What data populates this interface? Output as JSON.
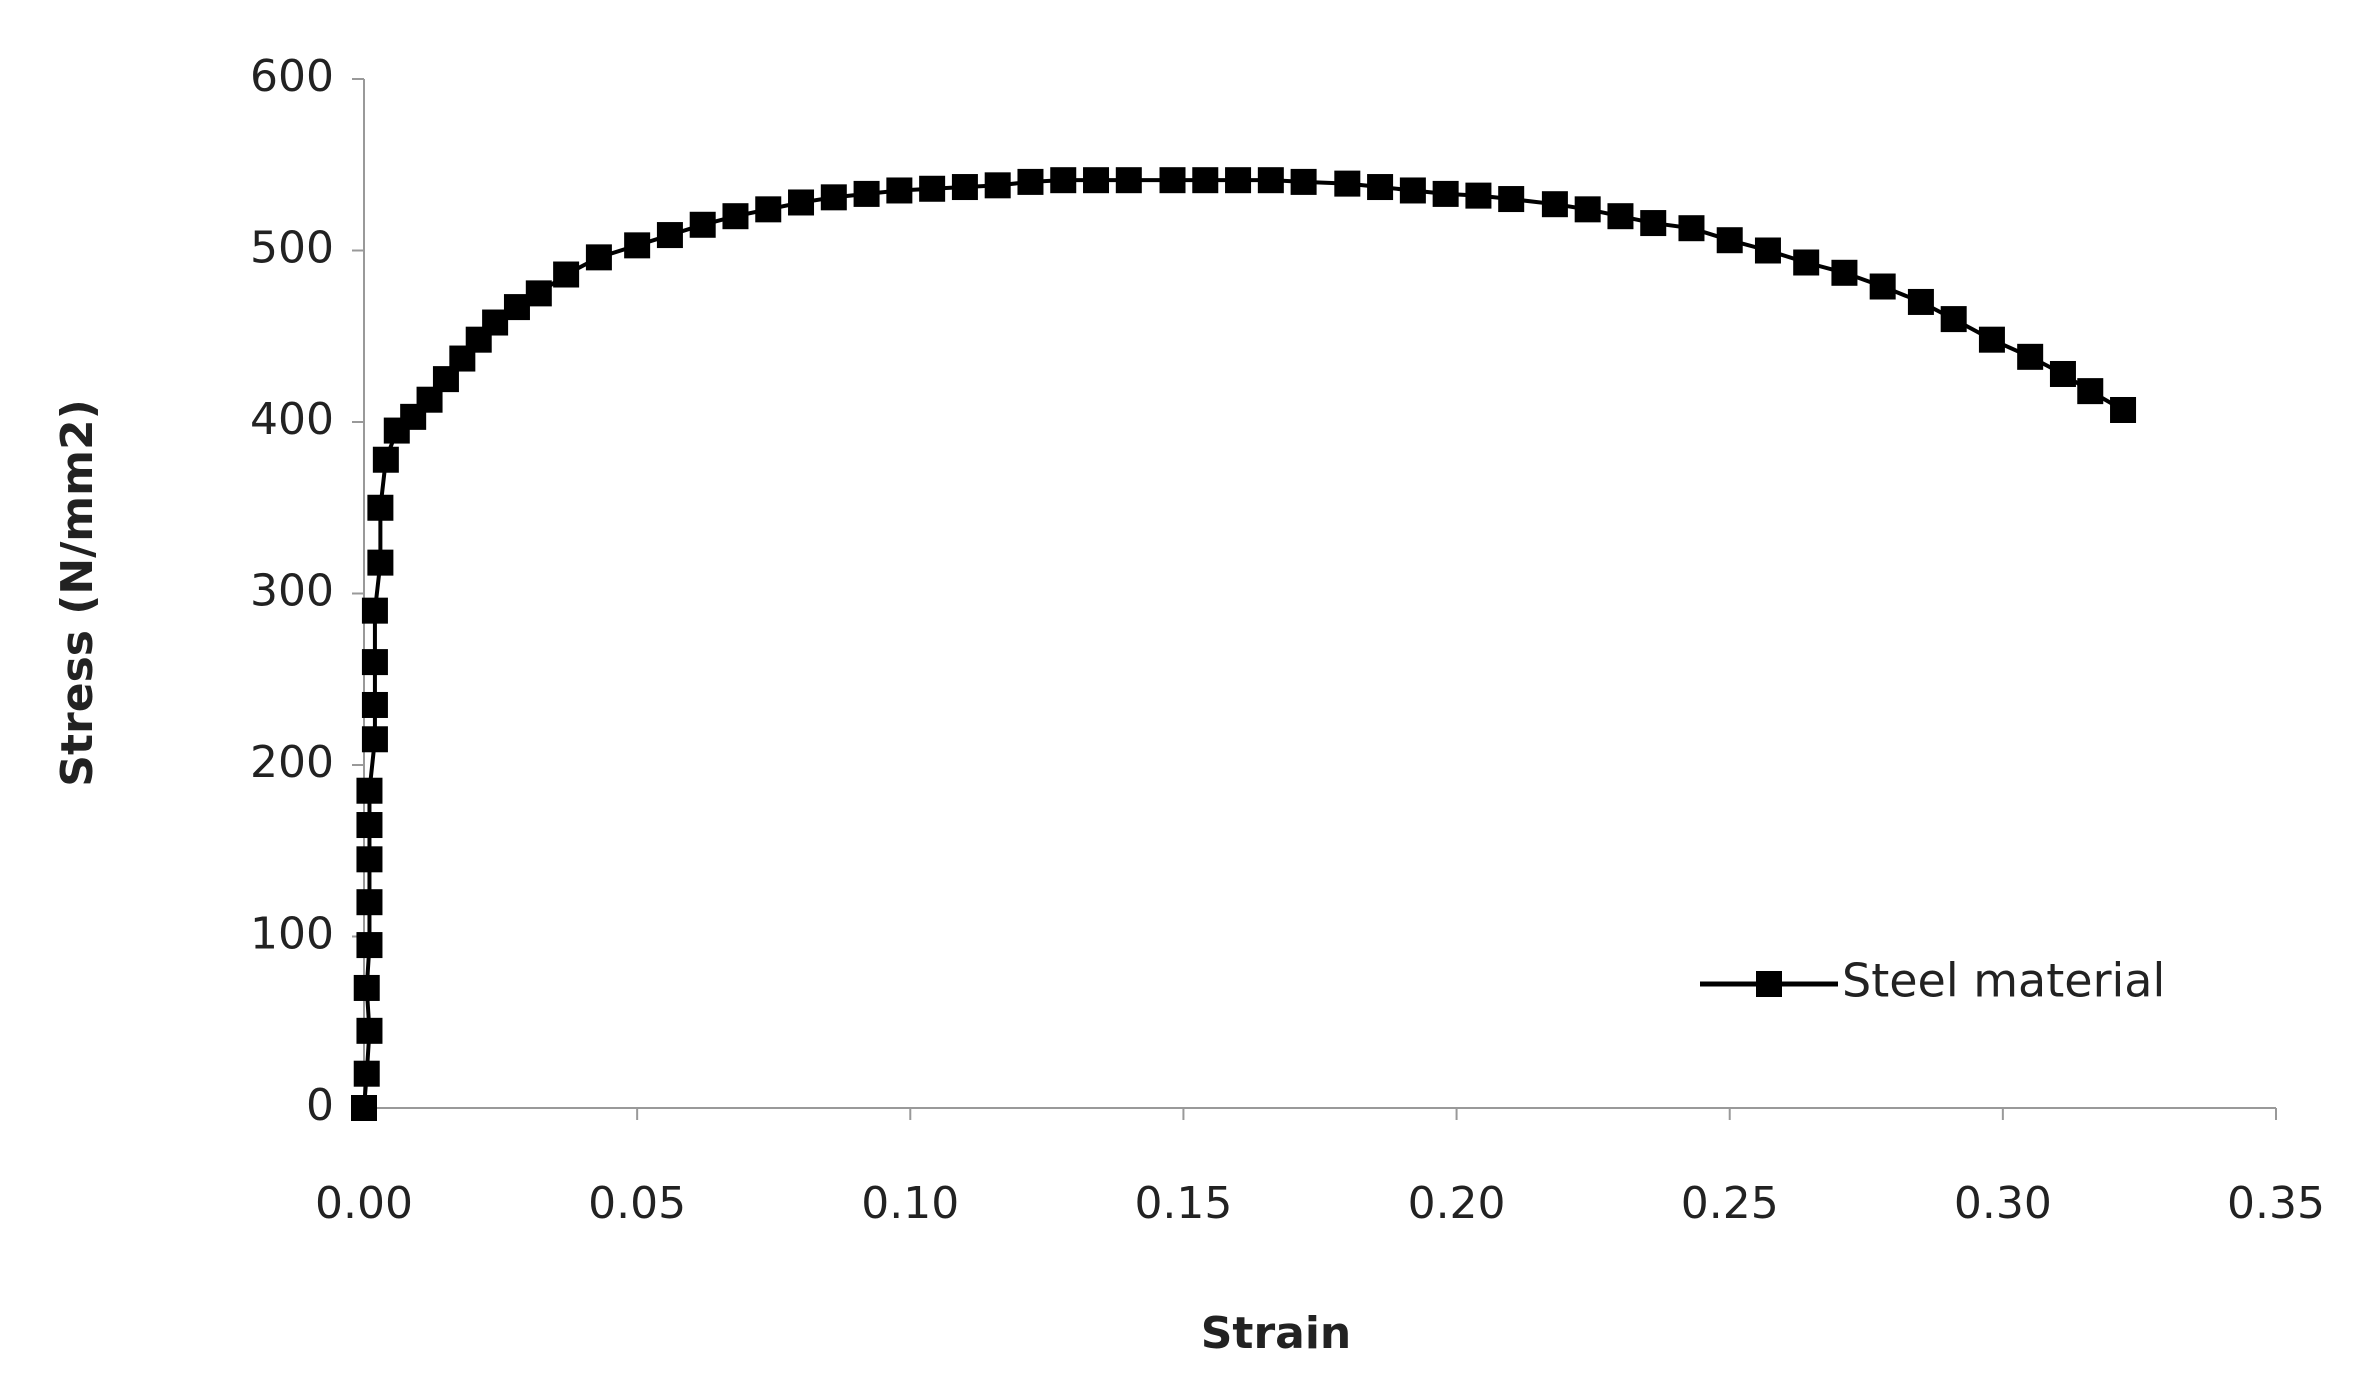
{
  "chart_data": {
    "type": "line",
    "x_label": "Strain",
    "y_label": "Stress (N/mm2)",
    "series": [
      {
        "name": "Steel material",
        "color": "#000000",
        "x": [
          0,
          0.0005,
          0.001,
          0.0005,
          0.001,
          0.001,
          0.001,
          0.001,
          0.001,
          0.002,
          0.002,
          0.002,
          0.002,
          0.003,
          0.003,
          0.004,
          0.006,
          0.009,
          0.012,
          0.015,
          0.018,
          0.021,
          0.024,
          0.028,
          0.032,
          0.037,
          0.043,
          0.05,
          0.056,
          0.062,
          0.068,
          0.074,
          0.08,
          0.086,
          0.092,
          0.098,
          0.104,
          0.11,
          0.116,
          0.122,
          0.128,
          0.134,
          0.14,
          0.148,
          0.154,
          0.16,
          0.166,
          0.172,
          0.18,
          0.186,
          0.192,
          0.198,
          0.204,
          0.21,
          0.218,
          0.224,
          0.23,
          0.236,
          0.243,
          0.25,
          0.257,
          0.264,
          0.271,
          0.278,
          0.285,
          0.291,
          0.298,
          0.305,
          0.311,
          0.316,
          0.322
        ],
        "values": [
          0,
          20,
          45,
          70,
          95,
          120,
          145,
          165,
          185,
          215,
          235,
          260,
          290,
          318,
          350,
          378,
          395,
          403,
          413,
          425,
          437,
          448,
          458,
          467,
          475,
          486,
          496,
          503,
          509,
          515,
          520,
          524,
          528,
          531,
          533,
          535,
          536,
          537,
          538,
          540,
          541,
          541,
          541,
          541,
          541,
          541,
          541,
          540,
          539,
          537,
          535,
          533,
          532,
          530,
          527,
          524,
          520,
          516,
          513,
          506,
          500,
          493,
          487,
          479,
          470,
          460,
          448,
          438,
          428,
          418,
          407
        ]
      }
    ],
    "xlim": [
      0,
      0.35
    ],
    "xticks": [
      {
        "value": 0,
        "label": "0.00"
      },
      {
        "value": 0.05,
        "label": "0.05"
      },
      {
        "value": 0.1,
        "label": "0.10"
      },
      {
        "value": 0.15,
        "label": "0.15"
      },
      {
        "value": 0.2,
        "label": "0.20"
      },
      {
        "value": 0.25,
        "label": "0.25"
      },
      {
        "value": 0.3,
        "label": "0.30"
      },
      {
        "value": 0.35,
        "label": "0.35"
      }
    ],
    "ylim": [
      0,
      600
    ],
    "yticks": [
      0,
      100,
      200,
      300,
      400,
      500,
      600
    ],
    "grid": false,
    "legend": "lower right"
  }
}
